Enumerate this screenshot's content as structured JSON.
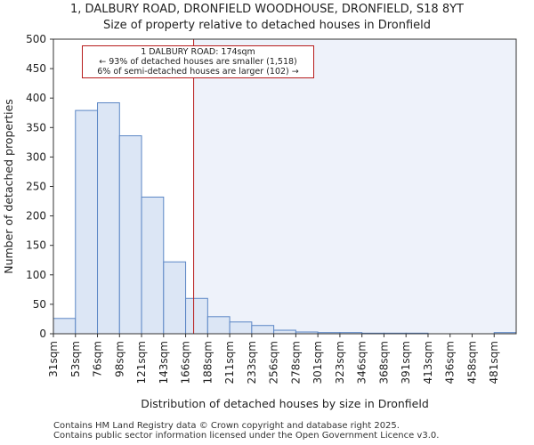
{
  "title": {
    "line1": "1, DALBURY ROAD, DRONFIELD WOODHOUSE, DRONFIELD, S18 8YT",
    "line2": "Size of property relative to detached houses in Dronfield"
  },
  "annotation": {
    "line1": "1 DALBURY ROAD: 174sqm",
    "line2": "← 93% of detached houses are smaller (1,518)",
    "line3": "6% of semi-detached houses are larger (102) →"
  },
  "footer": {
    "line1": "Contains HM Land Registry data © Crown copyright and database right 2025.",
    "line2": "Contains public sector information licensed under the Open Government Licence v3.0."
  },
  "colors": {
    "bar_fill": "#dce6f5",
    "bar_edge": "#5b86c5",
    "marker": "#b71c1c",
    "shade": "#eef2fa"
  },
  "chart_data": {
    "type": "bar",
    "title": "Size of property relative to detached houses in Dronfield",
    "xlabel": "Distribution of detached houses by size in Dronfield",
    "ylabel": "Number of detached properties",
    "ylim": [
      0,
      500
    ],
    "yticks": [
      0,
      50,
      100,
      150,
      200,
      250,
      300,
      350,
      400,
      450,
      500
    ],
    "categories": [
      "31sqm",
      "53sqm",
      "76sqm",
      "98sqm",
      "121sqm",
      "143sqm",
      "166sqm",
      "188sqm",
      "211sqm",
      "233sqm",
      "256sqm",
      "278sqm",
      "301sqm",
      "323sqm",
      "346sqm",
      "368sqm",
      "391sqm",
      "413sqm",
      "436sqm",
      "458sqm",
      "481sqm"
    ],
    "values": [
      26,
      379,
      392,
      336,
      232,
      122,
      60,
      29,
      20,
      14,
      6,
      3,
      2,
      2,
      1,
      1,
      1,
      0,
      0,
      0,
      2
    ],
    "marker_value": 174,
    "marker_label": "1 DALBURY ROAD: 174sqm"
  }
}
